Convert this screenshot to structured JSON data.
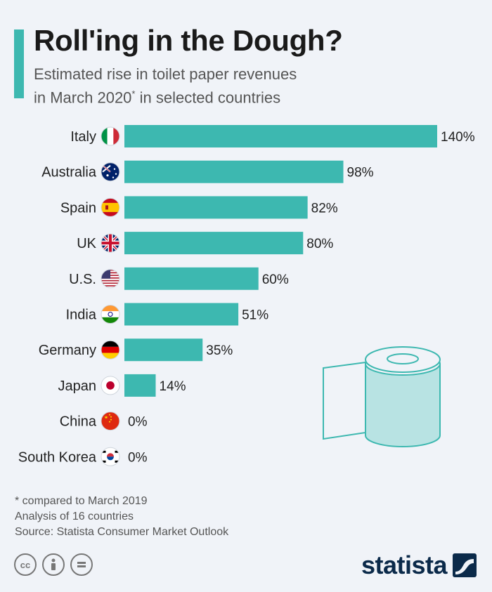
{
  "header": {
    "title": "Roll'ing in the Dough?",
    "subtitle_line1": "Estimated rise in toilet paper revenues",
    "subtitle_line2_pre": "in March 2020",
    "subtitle_sup": "*",
    "subtitle_line2_post": " in selected countries"
  },
  "colors": {
    "bar": "#3db8b0",
    "accent": "#3db8b0",
    "roll_fill": "#b8e3e3",
    "roll_stroke": "#3db8b0"
  },
  "chart_data": {
    "type": "bar",
    "orientation": "horizontal",
    "categories": [
      "Italy",
      "Australia",
      "Spain",
      "UK",
      "U.S.",
      "India",
      "Germany",
      "Japan",
      "China",
      "South Korea"
    ],
    "flags": [
      "italy-flag",
      "australia-flag",
      "spain-flag",
      "uk-flag",
      "us-flag",
      "india-flag",
      "germany-flag",
      "japan-flag",
      "china-flag",
      "south-korea-flag"
    ],
    "values": [
      140,
      98,
      82,
      80,
      60,
      51,
      35,
      14,
      0,
      0
    ],
    "value_labels": [
      "140%",
      "98%",
      "82%",
      "80%",
      "60%",
      "51%",
      "35%",
      "14%",
      "0%",
      "0%"
    ],
    "xlim": [
      0,
      140
    ],
    "grid": false,
    "legend": "none"
  },
  "footer": {
    "note1": "* compared to March 2019",
    "note2": "Analysis of 16 countries",
    "source": "Source: Statista Consumer Market Outlook",
    "cc_icons": [
      "cc-icon",
      "by-icon",
      "nd-icon"
    ],
    "logo_text": "statista"
  }
}
